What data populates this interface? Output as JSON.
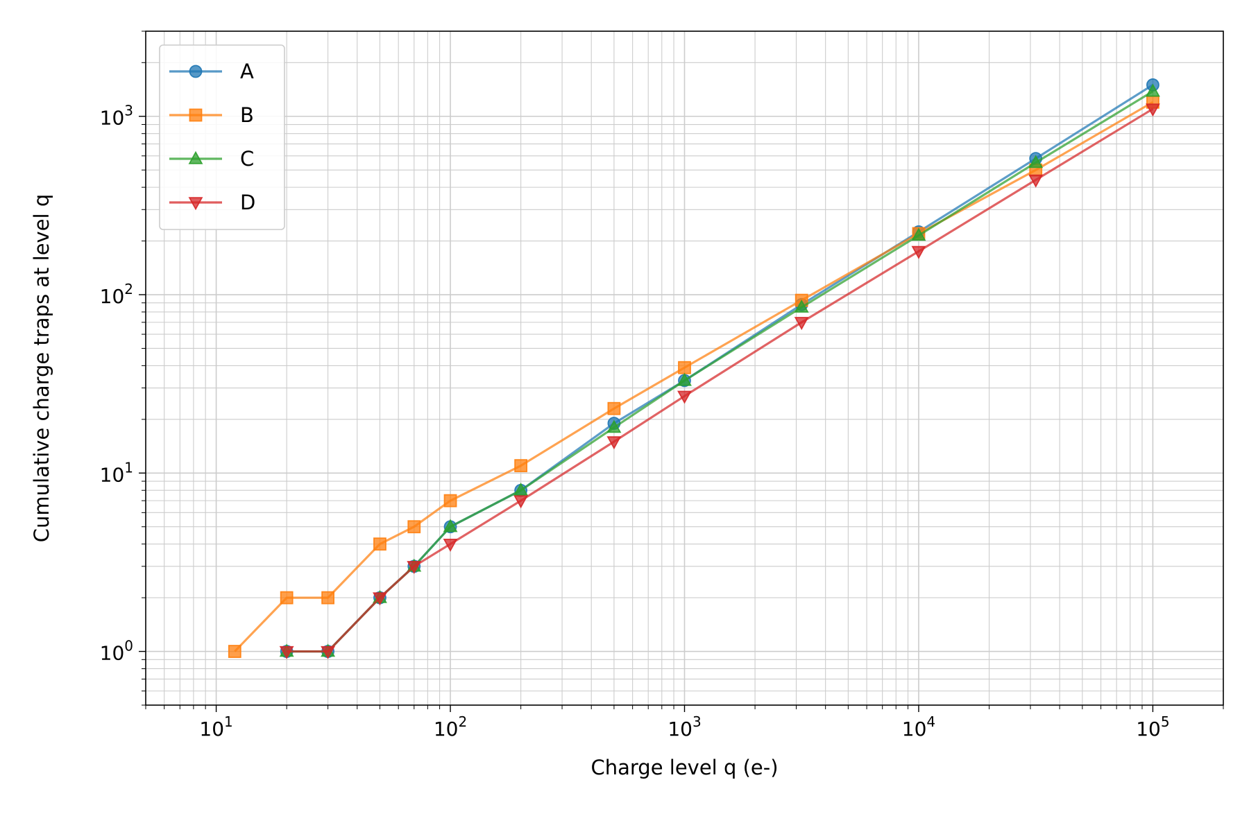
{
  "chart_data": {
    "type": "line",
    "xlabel": "Charge level q (e-)",
    "ylabel": "Cumulative charge traps at level q",
    "xscale": "log",
    "yscale": "log",
    "xlim": [
      5,
      200000
    ],
    "ylim": [
      0.5,
      3000
    ],
    "grid": "both-major-minor",
    "legend_position": "top-left",
    "x_tick_labels": [
      {
        "value": 10,
        "base": "10",
        "exp": "1"
      },
      {
        "value": 100,
        "base": "10",
        "exp": "2"
      },
      {
        "value": 1000,
        "base": "10",
        "exp": "3"
      },
      {
        "value": 10000,
        "base": "10",
        "exp": "4"
      },
      {
        "value": 100000,
        "base": "10",
        "exp": "5"
      }
    ],
    "y_tick_labels": [
      {
        "value": 1,
        "base": "10",
        "exp": "0"
      },
      {
        "value": 10,
        "base": "10",
        "exp": "1"
      },
      {
        "value": 100,
        "base": "10",
        "exp": "2"
      },
      {
        "value": 1000,
        "base": "10",
        "exp": "3"
      }
    ],
    "series": [
      {
        "name": "A",
        "color": "#1f77b4",
        "marker": "circle",
        "x": [
          20,
          30,
          50,
          70,
          100,
          200,
          500,
          1000,
          3162,
          10000,
          31623,
          100000
        ],
        "y": [
          1,
          1,
          2,
          3,
          5,
          8,
          19,
          33,
          88,
          225,
          580,
          1500
        ]
      },
      {
        "name": "B",
        "color": "#ff7f0e",
        "marker": "square",
        "x": [
          12,
          20,
          30,
          50,
          70,
          100,
          200,
          500,
          1000,
          3162,
          10000,
          31623,
          100000
        ],
        "y": [
          1,
          2,
          2,
          4,
          5,
          7,
          11,
          23,
          39,
          93,
          220,
          500,
          1200
        ]
      },
      {
        "name": "C",
        "color": "#2ca02c",
        "marker": "triangle-up",
        "x": [
          20,
          30,
          50,
          70,
          100,
          200,
          500,
          1000,
          3162,
          10000,
          31623,
          100000
        ],
        "y": [
          1,
          1,
          2,
          3,
          5,
          8,
          18,
          33,
          85,
          215,
          550,
          1380
        ]
      },
      {
        "name": "D",
        "color": "#d62728",
        "marker": "triangle-down",
        "x": [
          20,
          30,
          50,
          70,
          100,
          200,
          500,
          1000,
          3162,
          10000,
          31623,
          100000
        ],
        "y": [
          1,
          1,
          2,
          3,
          4,
          7,
          15,
          27,
          70,
          175,
          440,
          1100
        ]
      }
    ]
  }
}
